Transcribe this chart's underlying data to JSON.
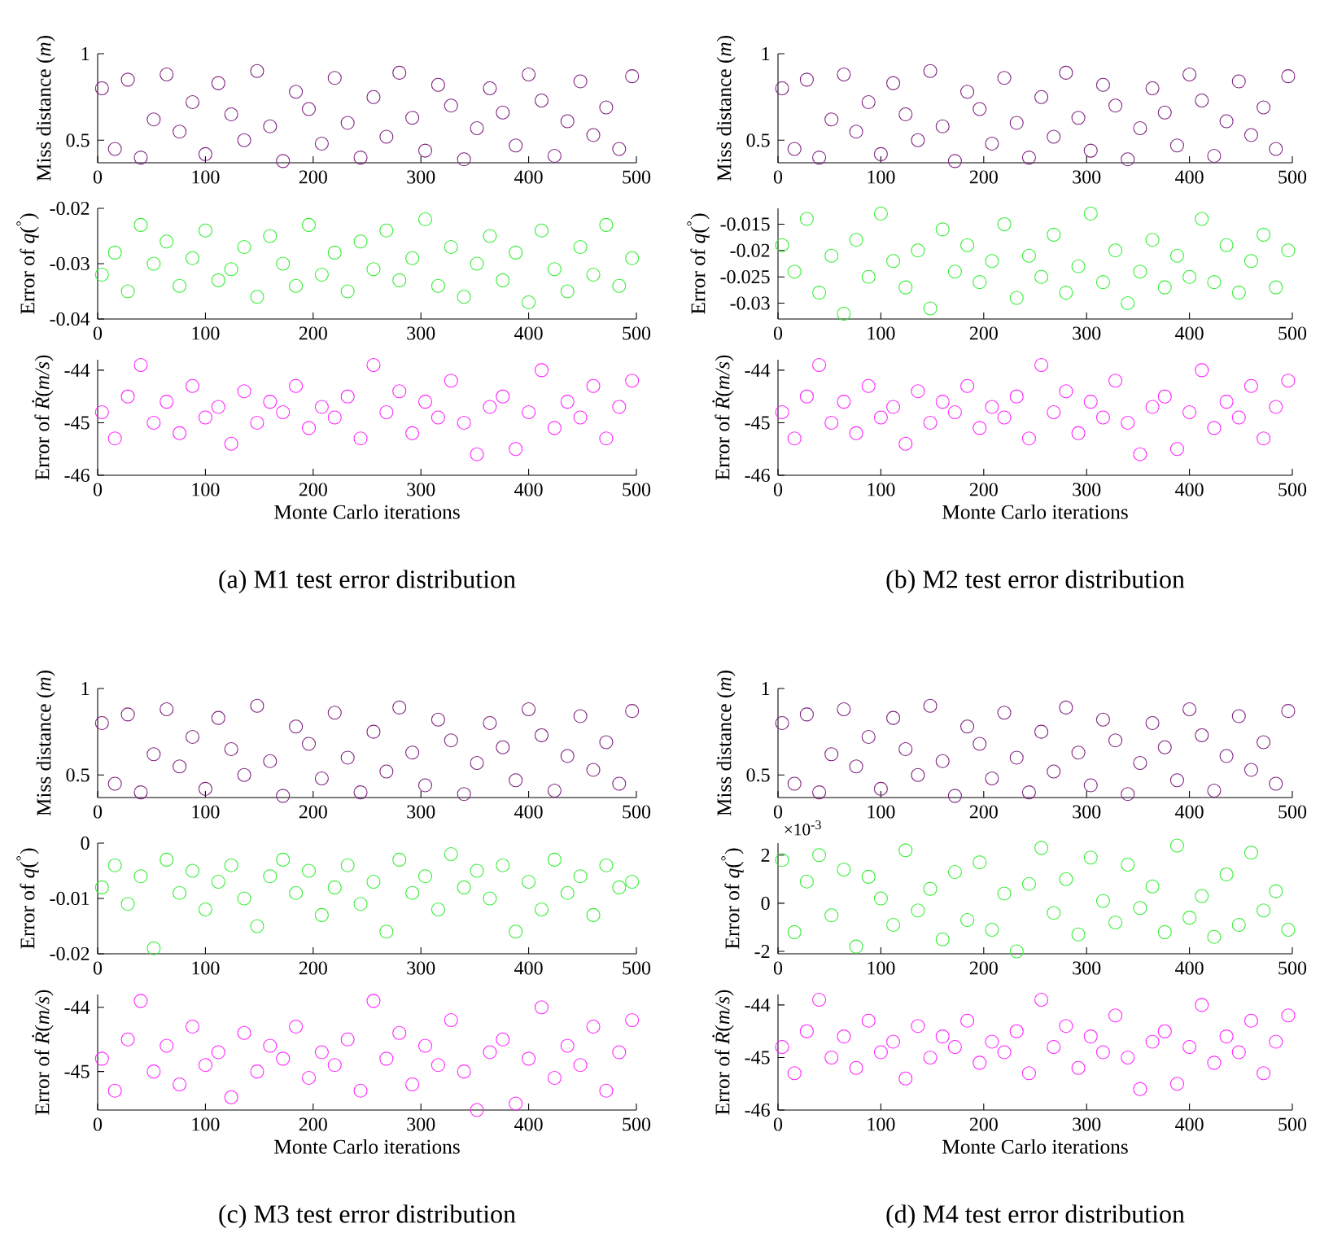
{
  "chart_data": [
    {
      "type": "scatter",
      "ylabel": "Miss distance (*m*)",
      "xlim": [
        0,
        500
      ],
      "xticks": [
        0,
        100,
        200,
        300,
        400,
        500
      ],
      "ylim": [
        0.37,
        1
      ],
      "yticks": [
        0.5,
        1
      ],
      "marker": "circle",
      "x": [
        4,
        16,
        28,
        40,
        52,
        64,
        76,
        88,
        100,
        112,
        124,
        136,
        148,
        160,
        172,
        184,
        196,
        208,
        220,
        232,
        244,
        256,
        268,
        280,
        292,
        304,
        316,
        328,
        340,
        352,
        364,
        376,
        388,
        400,
        412,
        424,
        436,
        448,
        460,
        472,
        484,
        496
      ],
      "series": [
        {
          "color": "#7f1f7f",
          "values": [
            0.8,
            0.45,
            0.85,
            0.4,
            0.62,
            0.88,
            0.55,
            0.72,
            0.42,
            0.83,
            0.65,
            0.5,
            0.9,
            0.58,
            0.38,
            0.78,
            0.68,
            0.48,
            0.86,
            0.6,
            0.4,
            0.75,
            0.52,
            0.89,
            0.63,
            0.44,
            0.82,
            0.7,
            0.39,
            0.57,
            0.8,
            0.66,
            0.47,
            0.88,
            0.73,
            0.41,
            0.61,
            0.84,
            0.53,
            0.69,
            0.45,
            0.87
          ]
        }
      ]
    },
    {
      "type": "scatter",
      "ylabel": "Error of *q*($^{°}$)",
      "xlim": [
        0,
        500
      ],
      "xticks": [
        0,
        100,
        200,
        300,
        400,
        500
      ],
      "ylim": [
        -0.04,
        -0.02
      ],
      "yticks": [
        -0.04,
        -0.03,
        -0.02
      ],
      "marker": "circle",
      "x": [
        4,
        16,
        28,
        40,
        52,
        64,
        76,
        88,
        100,
        112,
        124,
        136,
        148,
        160,
        172,
        184,
        196,
        208,
        220,
        232,
        244,
        256,
        268,
        280,
        292,
        304,
        316,
        328,
        340,
        352,
        364,
        376,
        388,
        400,
        412,
        424,
        436,
        448,
        460,
        472,
        484,
        496
      ],
      "series": [
        {
          "color": "#33ee33",
          "values": [
            -0.032,
            -0.028,
            -0.035,
            -0.023,
            -0.03,
            -0.026,
            -0.034,
            -0.029,
            -0.024,
            -0.033,
            -0.031,
            -0.027,
            -0.036,
            -0.025,
            -0.03,
            -0.034,
            -0.023,
            -0.032,
            -0.028,
            -0.035,
            -0.026,
            -0.031,
            -0.024,
            -0.033,
            -0.029,
            -0.022,
            -0.034,
            -0.027,
            -0.036,
            -0.03,
            -0.025,
            -0.033,
            -0.028,
            -0.037,
            -0.024,
            -0.031,
            -0.035,
            -0.027,
            -0.032,
            -0.023,
            -0.034,
            -0.029
          ]
        }
      ]
    },
    {
      "type": "scatter",
      "ylabel": "Error of *Ṙ*(*m/s*)",
      "xlabel": "Monte Carlo iterations",
      "annotations": [
        "(a)  M1 test error distribution"
      ],
      "xlim": [
        0,
        500
      ],
      "xticks": [
        0,
        100,
        200,
        300,
        400,
        500
      ],
      "ylim": [
        -46,
        -43.8
      ],
      "yticks": [
        -46,
        -45,
        -44
      ],
      "marker": "circle",
      "x": [
        4,
        16,
        28,
        40,
        52,
        64,
        76,
        88,
        100,
        112,
        124,
        136,
        148,
        160,
        172,
        184,
        196,
        208,
        220,
        232,
        244,
        256,
        268,
        280,
        292,
        304,
        316,
        328,
        340,
        352,
        364,
        376,
        388,
        400,
        412,
        424,
        436,
        448,
        460,
        472,
        484,
        496
      ],
      "series": [
        {
          "color": "#ff22ff",
          "values": [
            -44.8,
            -45.3,
            -44.5,
            -43.9,
            -45.0,
            -44.6,
            -45.2,
            -44.3,
            -44.9,
            -44.7,
            -45.4,
            -44.4,
            -45.0,
            -44.6,
            -44.8,
            -44.3,
            -45.1,
            -44.7,
            -44.9,
            -44.5,
            -45.3,
            -43.9,
            -44.8,
            -44.4,
            -45.2,
            -44.6,
            -44.9,
            -44.2,
            -45.0,
            -45.6,
            -44.7,
            -44.5,
            -45.5,
            -44.8,
            -44.0,
            -45.1,
            -44.6,
            -44.9,
            -44.3,
            -45.3,
            -44.7,
            -44.2
          ]
        }
      ]
    },
    {
      "type": "scatter",
      "ylabel": "Miss distance (*m*)",
      "xlim": [
        0,
        500
      ],
      "xticks": [
        0,
        100,
        200,
        300,
        400,
        500
      ],
      "ylim": [
        0.37,
        1
      ],
      "yticks": [
        0.5,
        1
      ],
      "marker": "circle",
      "x": [
        4,
        16,
        28,
        40,
        52,
        64,
        76,
        88,
        100,
        112,
        124,
        136,
        148,
        160,
        172,
        184,
        196,
        208,
        220,
        232,
        244,
        256,
        268,
        280,
        292,
        304,
        316,
        328,
        340,
        352,
        364,
        376,
        388,
        400,
        412,
        424,
        436,
        448,
        460,
        472,
        484,
        496
      ],
      "series": [
        {
          "color": "#7f1f7f",
          "values": [
            0.8,
            0.45,
            0.85,
            0.4,
            0.62,
            0.88,
            0.55,
            0.72,
            0.42,
            0.83,
            0.65,
            0.5,
            0.9,
            0.58,
            0.38,
            0.78,
            0.68,
            0.48,
            0.86,
            0.6,
            0.4,
            0.75,
            0.52,
            0.89,
            0.63,
            0.44,
            0.82,
            0.7,
            0.39,
            0.57,
            0.8,
            0.66,
            0.47,
            0.88,
            0.73,
            0.41,
            0.61,
            0.84,
            0.53,
            0.69,
            0.45,
            0.87
          ]
        }
      ]
    },
    {
      "type": "scatter",
      "ylabel": "Error of *q*($^{°}$)",
      "xlim": [
        0,
        500
      ],
      "xticks": [
        0,
        100,
        200,
        300,
        400,
        500
      ],
      "ylim": [
        -0.033,
        -0.012
      ],
      "yticks": [
        -0.03,
        -0.025,
        -0.02,
        -0.015
      ],
      "marker": "circle",
      "x": [
        4,
        16,
        28,
        40,
        52,
        64,
        76,
        88,
        100,
        112,
        124,
        136,
        148,
        160,
        172,
        184,
        196,
        208,
        220,
        232,
        244,
        256,
        268,
        280,
        292,
        304,
        316,
        328,
        340,
        352,
        364,
        376,
        388,
        400,
        412,
        424,
        436,
        448,
        460,
        472,
        484,
        496
      ],
      "series": [
        {
          "color": "#33ee33",
          "values": [
            -0.019,
            -0.024,
            -0.014,
            -0.028,
            -0.021,
            -0.032,
            -0.018,
            -0.025,
            -0.013,
            -0.022,
            -0.027,
            -0.02,
            -0.031,
            -0.016,
            -0.024,
            -0.019,
            -0.026,
            -0.022,
            -0.015,
            -0.029,
            -0.021,
            -0.025,
            -0.017,
            -0.028,
            -0.023,
            -0.013,
            -0.026,
            -0.02,
            -0.03,
            -0.024,
            -0.018,
            -0.027,
            -0.021,
            -0.025,
            -0.014,
            -0.026,
            -0.019,
            -0.028,
            -0.022,
            -0.017,
            -0.027,
            -0.02
          ]
        }
      ]
    },
    {
      "type": "scatter",
      "ylabel": "Error of *Ṙ*(*m/s*)",
      "xlabel": "Monte Carlo iterations",
      "annotations": [
        "(b)  M2 test error distribution"
      ],
      "xlim": [
        0,
        500
      ],
      "xticks": [
        0,
        100,
        200,
        300,
        400,
        500
      ],
      "ylim": [
        -46,
        -43.8
      ],
      "yticks": [
        -46,
        -45,
        -44
      ],
      "marker": "circle",
      "x": [
        4,
        16,
        28,
        40,
        52,
        64,
        76,
        88,
        100,
        112,
        124,
        136,
        148,
        160,
        172,
        184,
        196,
        208,
        220,
        232,
        244,
        256,
        268,
        280,
        292,
        304,
        316,
        328,
        340,
        352,
        364,
        376,
        388,
        400,
        412,
        424,
        436,
        448,
        460,
        472,
        484,
        496
      ],
      "series": [
        {
          "color": "#ff22ff",
          "values": [
            -44.8,
            -45.3,
            -44.5,
            -43.9,
            -45.0,
            -44.6,
            -45.2,
            -44.3,
            -44.9,
            -44.7,
            -45.4,
            -44.4,
            -45.0,
            -44.6,
            -44.8,
            -44.3,
            -45.1,
            -44.7,
            -44.9,
            -44.5,
            -45.3,
            -43.9,
            -44.8,
            -44.4,
            -45.2,
            -44.6,
            -44.9,
            -44.2,
            -45.0,
            -45.6,
            -44.7,
            -44.5,
            -45.5,
            -44.8,
            -44.0,
            -45.1,
            -44.6,
            -44.9,
            -44.3,
            -45.3,
            -44.7,
            -44.2
          ]
        }
      ]
    },
    {
      "type": "scatter",
      "ylabel": "Miss distance (*m*)",
      "xlim": [
        0,
        500
      ],
      "xticks": [
        0,
        100,
        200,
        300,
        400,
        500
      ],
      "ylim": [
        0.37,
        1
      ],
      "yticks": [
        0.5,
        1
      ],
      "marker": "circle",
      "x": [
        4,
        16,
        28,
        40,
        52,
        64,
        76,
        88,
        100,
        112,
        124,
        136,
        148,
        160,
        172,
        184,
        196,
        208,
        220,
        232,
        244,
        256,
        268,
        280,
        292,
        304,
        316,
        328,
        340,
        352,
        364,
        376,
        388,
        400,
        412,
        424,
        436,
        448,
        460,
        472,
        484,
        496
      ],
      "series": [
        {
          "color": "#7f1f7f",
          "values": [
            0.8,
            0.45,
            0.85,
            0.4,
            0.62,
            0.88,
            0.55,
            0.72,
            0.42,
            0.83,
            0.65,
            0.5,
            0.9,
            0.58,
            0.38,
            0.78,
            0.68,
            0.48,
            0.86,
            0.6,
            0.4,
            0.75,
            0.52,
            0.89,
            0.63,
            0.44,
            0.82,
            0.7,
            0.39,
            0.57,
            0.8,
            0.66,
            0.47,
            0.88,
            0.73,
            0.41,
            0.61,
            0.84,
            0.53,
            0.69,
            0.45,
            0.87
          ]
        }
      ]
    },
    {
      "type": "scatter",
      "ylabel": "Error of *q*($^{°}$)",
      "xlim": [
        0,
        500
      ],
      "xticks": [
        0,
        100,
        200,
        300,
        400,
        500
      ],
      "ylim": [
        -0.02,
        0
      ],
      "yticks": [
        -0.02,
        -0.01,
        0
      ],
      "marker": "circle",
      "x": [
        4,
        16,
        28,
        40,
        52,
        64,
        76,
        88,
        100,
        112,
        124,
        136,
        148,
        160,
        172,
        184,
        196,
        208,
        220,
        232,
        244,
        256,
        268,
        280,
        292,
        304,
        316,
        328,
        340,
        352,
        364,
        376,
        388,
        400,
        412,
        424,
        436,
        448,
        460,
        472,
        484,
        496
      ],
      "series": [
        {
          "color": "#33ee33",
          "values": [
            -0.008,
            -0.004,
            -0.011,
            -0.006,
            -0.019,
            -0.003,
            -0.009,
            -0.005,
            -0.012,
            -0.007,
            -0.004,
            -0.01,
            -0.015,
            -0.006,
            -0.003,
            -0.009,
            -0.005,
            -0.013,
            -0.008,
            -0.004,
            -0.011,
            -0.007,
            -0.016,
            -0.003,
            -0.009,
            -0.006,
            -0.012,
            -0.002,
            -0.008,
            -0.005,
            -0.01,
            -0.004,
            -0.016,
            -0.007,
            -0.012,
            -0.003,
            -0.009,
            -0.006,
            -0.013,
            -0.004,
            -0.008,
            -0.007
          ]
        }
      ]
    },
    {
      "type": "scatter",
      "ylabel": "Error of *Ṙ*(*m/s*)",
      "xlabel": "Monte Carlo iterations",
      "annotations": [
        "(c)  M3 test error distribution"
      ],
      "xlim": [
        0,
        500
      ],
      "xticks": [
        0,
        100,
        200,
        300,
        400,
        500
      ],
      "ylim": [
        -45.6,
        -43.8
      ],
      "yticks": [
        -45,
        -44
      ],
      "marker": "circle",
      "x": [
        4,
        16,
        28,
        40,
        52,
        64,
        76,
        88,
        100,
        112,
        124,
        136,
        148,
        160,
        172,
        184,
        196,
        208,
        220,
        232,
        244,
        256,
        268,
        280,
        292,
        304,
        316,
        328,
        340,
        352,
        364,
        376,
        388,
        400,
        412,
        424,
        436,
        448,
        460,
        472,
        484,
        496
      ],
      "series": [
        {
          "color": "#ff22ff",
          "values": [
            -44.8,
            -45.3,
            -44.5,
            -43.9,
            -45.0,
            -44.6,
            -45.2,
            -44.3,
            -44.9,
            -44.7,
            -45.4,
            -44.4,
            -45.0,
            -44.6,
            -44.8,
            -44.3,
            -45.1,
            -44.7,
            -44.9,
            -44.5,
            -45.3,
            -43.9,
            -44.8,
            -44.4,
            -45.2,
            -44.6,
            -44.9,
            -44.2,
            -45.0,
            -45.6,
            -44.7,
            -44.5,
            -45.5,
            -44.8,
            -44.0,
            -45.1,
            -44.6,
            -44.9,
            -44.3,
            -45.3,
            -44.7,
            -44.2
          ]
        }
      ]
    },
    {
      "type": "scatter",
      "ylabel": "Miss distance (*m*)",
      "xlim": [
        0,
        500
      ],
      "xticks": [
        0,
        100,
        200,
        300,
        400,
        500
      ],
      "ylim": [
        0.37,
        1
      ],
      "yticks": [
        0.5,
        1
      ],
      "marker": "circle",
      "x": [
        4,
        16,
        28,
        40,
        52,
        64,
        76,
        88,
        100,
        112,
        124,
        136,
        148,
        160,
        172,
        184,
        196,
        208,
        220,
        232,
        244,
        256,
        268,
        280,
        292,
        304,
        316,
        328,
        340,
        352,
        364,
        376,
        388,
        400,
        412,
        424,
        436,
        448,
        460,
        472,
        484,
        496
      ],
      "series": [
        {
          "color": "#7f1f7f",
          "values": [
            0.8,
            0.45,
            0.85,
            0.4,
            0.62,
            0.88,
            0.55,
            0.72,
            0.42,
            0.83,
            0.65,
            0.5,
            0.9,
            0.58,
            0.38,
            0.78,
            0.68,
            0.48,
            0.86,
            0.6,
            0.4,
            0.75,
            0.52,
            0.89,
            0.63,
            0.44,
            0.82,
            0.7,
            0.39,
            0.57,
            0.8,
            0.66,
            0.47,
            0.88,
            0.73,
            0.41,
            0.61,
            0.84,
            0.53,
            0.69,
            0.45,
            0.87
          ]
        }
      ]
    },
    {
      "type": "scatter",
      "ylabel": "Error of *q*($^{°}$)",
      "annotations": [
        "×10$^{-3}$"
      ],
      "xlim": [
        0,
        500
      ],
      "xticks": [
        0,
        100,
        200,
        300,
        400,
        500
      ],
      "ylim": [
        -2.1,
        2.5
      ],
      "yticks": [
        -2,
        0,
        2
      ],
      "marker": "circle",
      "x": [
        4,
        16,
        28,
        40,
        52,
        64,
        76,
        88,
        100,
        112,
        124,
        136,
        148,
        160,
        172,
        184,
        196,
        208,
        220,
        232,
        244,
        256,
        268,
        280,
        292,
        304,
        316,
        328,
        340,
        352,
        364,
        376,
        388,
        400,
        412,
        424,
        436,
        448,
        460,
        472,
        484,
        496
      ],
      "series": [
        {
          "color": "#33ee33",
          "values": [
            1.8,
            -1.2,
            0.9,
            2.0,
            -0.5,
            1.4,
            -1.8,
            1.1,
            0.2,
            -0.9,
            2.2,
            -0.3,
            0.6,
            -1.5,
            1.3,
            -0.7,
            1.7,
            -1.1,
            0.4,
            -2.0,
            0.8,
            2.3,
            -0.4,
            1.0,
            -1.3,
            1.9,
            0.1,
            -0.8,
            1.6,
            -0.2,
            0.7,
            -1.2,
            2.4,
            -0.6,
            0.3,
            -1.4,
            1.2,
            -0.9,
            2.1,
            -0.3,
            0.5,
            -1.1
          ]
        }
      ]
    },
    {
      "type": "scatter",
      "ylabel": "Error of *Ṙ*(*m/s*)",
      "xlabel": "Monte Carlo iterations",
      "annotations": [
        "(d)  M4 test error distribution"
      ],
      "xlim": [
        0,
        500
      ],
      "xticks": [
        0,
        100,
        200,
        300,
        400,
        500
      ],
      "ylim": [
        -46,
        -43.8
      ],
      "yticks": [
        -46,
        -45,
        -44
      ],
      "marker": "circle",
      "x": [
        4,
        16,
        28,
        40,
        52,
        64,
        76,
        88,
        100,
        112,
        124,
        136,
        148,
        160,
        172,
        184,
        196,
        208,
        220,
        232,
        244,
        256,
        268,
        280,
        292,
        304,
        316,
        328,
        340,
        352,
        364,
        376,
        388,
        400,
        412,
        424,
        436,
        448,
        460,
        472,
        484,
        496
      ],
      "series": [
        {
          "color": "#ff22ff",
          "values": [
            -44.8,
            -45.3,
            -44.5,
            -43.9,
            -45.0,
            -44.6,
            -45.2,
            -44.3,
            -44.9,
            -44.7,
            -45.4,
            -44.4,
            -45.0,
            -44.6,
            -44.8,
            -44.3,
            -45.1,
            -44.7,
            -44.9,
            -44.5,
            -45.3,
            -43.9,
            -44.8,
            -44.4,
            -45.2,
            -44.6,
            -44.9,
            -44.2,
            -45.0,
            -45.6,
            -44.7,
            -44.5,
            -45.5,
            -44.8,
            -44.0,
            -45.1,
            -44.6,
            -44.9,
            -44.3,
            -45.3,
            -44.7,
            -44.2
          ]
        }
      ]
    }
  ]
}
